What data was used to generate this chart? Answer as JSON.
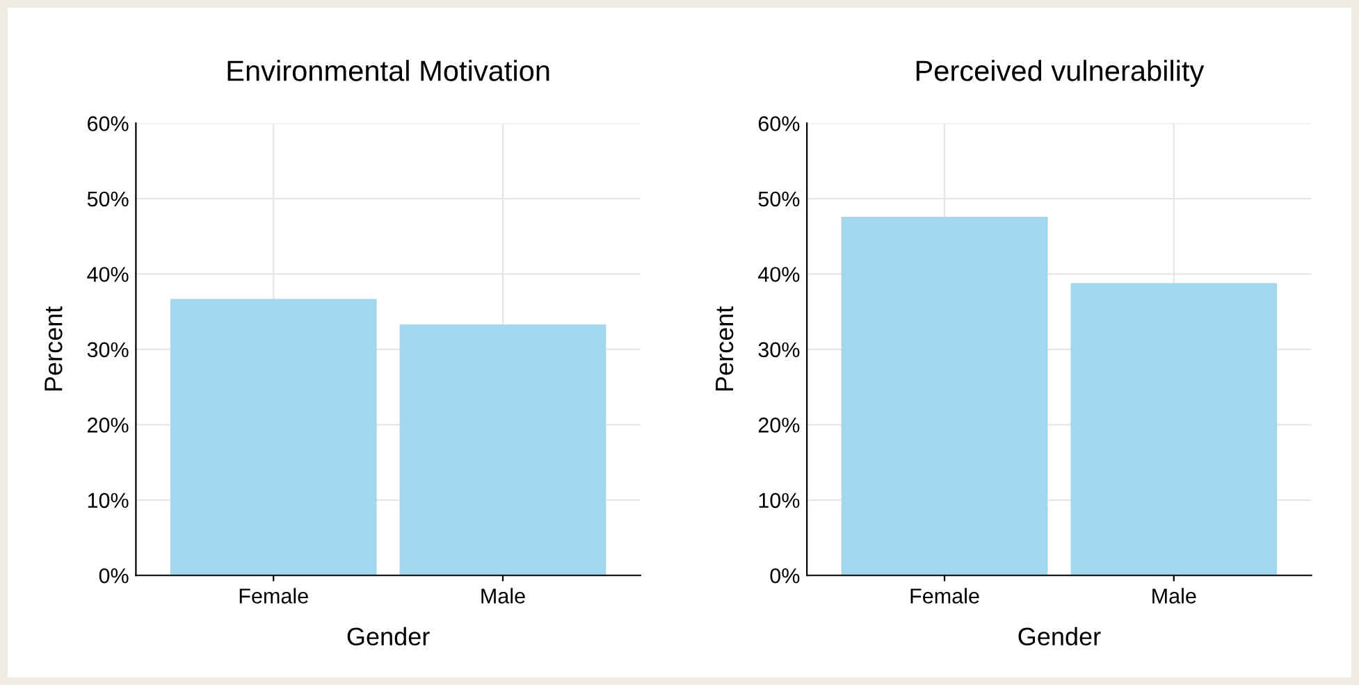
{
  "chart_data": [
    {
      "type": "bar",
      "title": "Environmental Motivation",
      "xlabel": "Gender",
      "ylabel": "Percent",
      "categories": [
        "Female",
        "Male"
      ],
      "values": [
        36.7,
        33.3
      ],
      "color": "#a3d7ee",
      "ylim": [
        0,
        60
      ],
      "yticks": [
        {
          "value": 0,
          "label": "0%"
        },
        {
          "value": 10,
          "label": "10%"
        },
        {
          "value": 20,
          "label": "20%"
        },
        {
          "value": 30,
          "label": "30%"
        },
        {
          "value": 40,
          "label": "40%"
        },
        {
          "value": 50,
          "label": "50%"
        },
        {
          "value": 60,
          "label": "60%"
        }
      ],
      "grid": true
    },
    {
      "type": "bar",
      "title": "Perceived vulnerability",
      "xlabel": "Gender",
      "ylabel": "Percent",
      "categories": [
        "Female",
        "Male"
      ],
      "values": [
        47.6,
        38.8
      ],
      "color": "#a3d7ee",
      "ylim": [
        0,
        60
      ],
      "yticks": [
        {
          "value": 0,
          "label": "0%"
        },
        {
          "value": 10,
          "label": "10%"
        },
        {
          "value": 20,
          "label": "20%"
        },
        {
          "value": 30,
          "label": "30%"
        },
        {
          "value": 40,
          "label": "40%"
        },
        {
          "value": 50,
          "label": "50%"
        },
        {
          "value": 60,
          "label": "60%"
        }
      ],
      "grid": true
    }
  ]
}
